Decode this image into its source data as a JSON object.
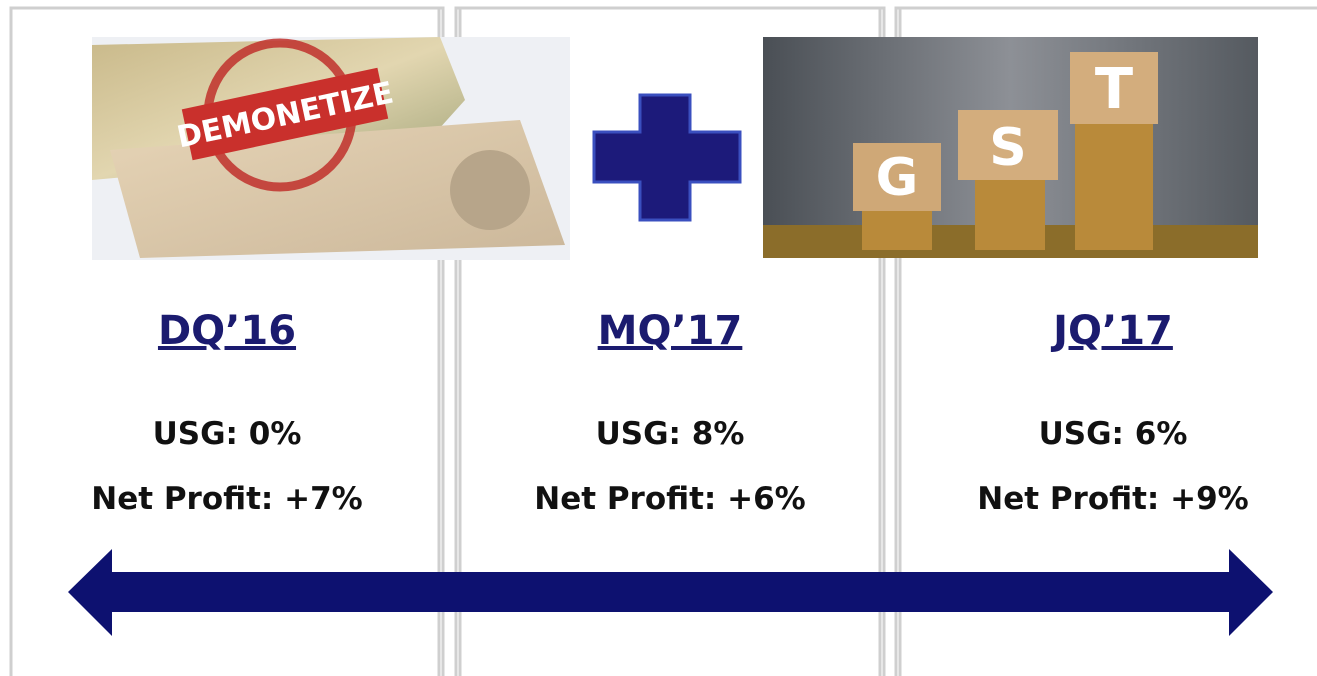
{
  "columns": [
    {
      "title": "DQ’16",
      "usg": "USG: 0%",
      "net_profit": "Net Profit: +7%"
    },
    {
      "title": "MQ’17",
      "usg": "USG: 8%",
      "net_profit": "Net Profit: +6%"
    },
    {
      "title": "JQ’17",
      "usg": "USG: 6%",
      "net_profit": "Net Profit: +9%"
    }
  ],
  "images": {
    "demonetize": {
      "stamp": "DEMONETIZE"
    },
    "gst": {
      "blocks": [
        "G",
        "S",
        "T"
      ]
    }
  }
}
